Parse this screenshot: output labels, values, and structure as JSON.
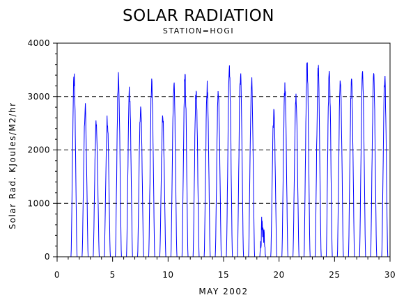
{
  "chart_data": {
    "type": "line",
    "title": "SOLAR RADIATION",
    "subtitle": "STATION=HOGI",
    "xlabel": "MAY 2002",
    "ylabel": "Solar Rad. KJoules/M2/hr",
    "xlim": [
      0,
      30
    ],
    "ylim": [
      0,
      4000
    ],
    "xticks": [
      0,
      5,
      10,
      15,
      20,
      25,
      30
    ],
    "yticks": [
      0,
      1000,
      2000,
      3000,
      4000
    ],
    "grid": "horizontal-dashed",
    "line_color": "#0000ff",
    "daily_peaks": [
      {
        "day": 1,
        "peak": 3480
      },
      {
        "day": 2,
        "peak": 2920
      },
      {
        "day": 3,
        "peak": 2640
      },
      {
        "day": 4,
        "peak": 2730
      },
      {
        "day": 5,
        "peak": 3550
      },
      {
        "day": 6,
        "peak": 3250
      },
      {
        "day": 7,
        "peak": 2960
      },
      {
        "day": 8,
        "peak": 3400
      },
      {
        "day": 9,
        "peak": 2700
      },
      {
        "day": 10,
        "peak": 3400
      },
      {
        "day": 11,
        "peak": 3520
      },
      {
        "day": 12,
        "peak": 3270
      },
      {
        "day": 13,
        "peak": 3300
      },
      {
        "day": 14,
        "peak": 3230
      },
      {
        "day": 15,
        "peak": 3670
      },
      {
        "day": 16,
        "peak": 3620
      },
      {
        "day": 17,
        "peak": 3450
      },
      {
        "day": 18,
        "peak": 950
      },
      {
        "day": 19,
        "peak": 2800
      },
      {
        "day": 20,
        "peak": 3280
      },
      {
        "day": 21,
        "peak": 3120
      },
      {
        "day": 22,
        "peak": 3710
      },
      {
        "day": 23,
        "peak": 3650
      },
      {
        "day": 24,
        "peak": 3620
      },
      {
        "day": 25,
        "peak": 3470
      },
      {
        "day": 26,
        "peak": 3460
      },
      {
        "day": 27,
        "peak": 3590
      },
      {
        "day": 28,
        "peak": 3510
      },
      {
        "day": 29,
        "peak": 3460
      }
    ]
  }
}
